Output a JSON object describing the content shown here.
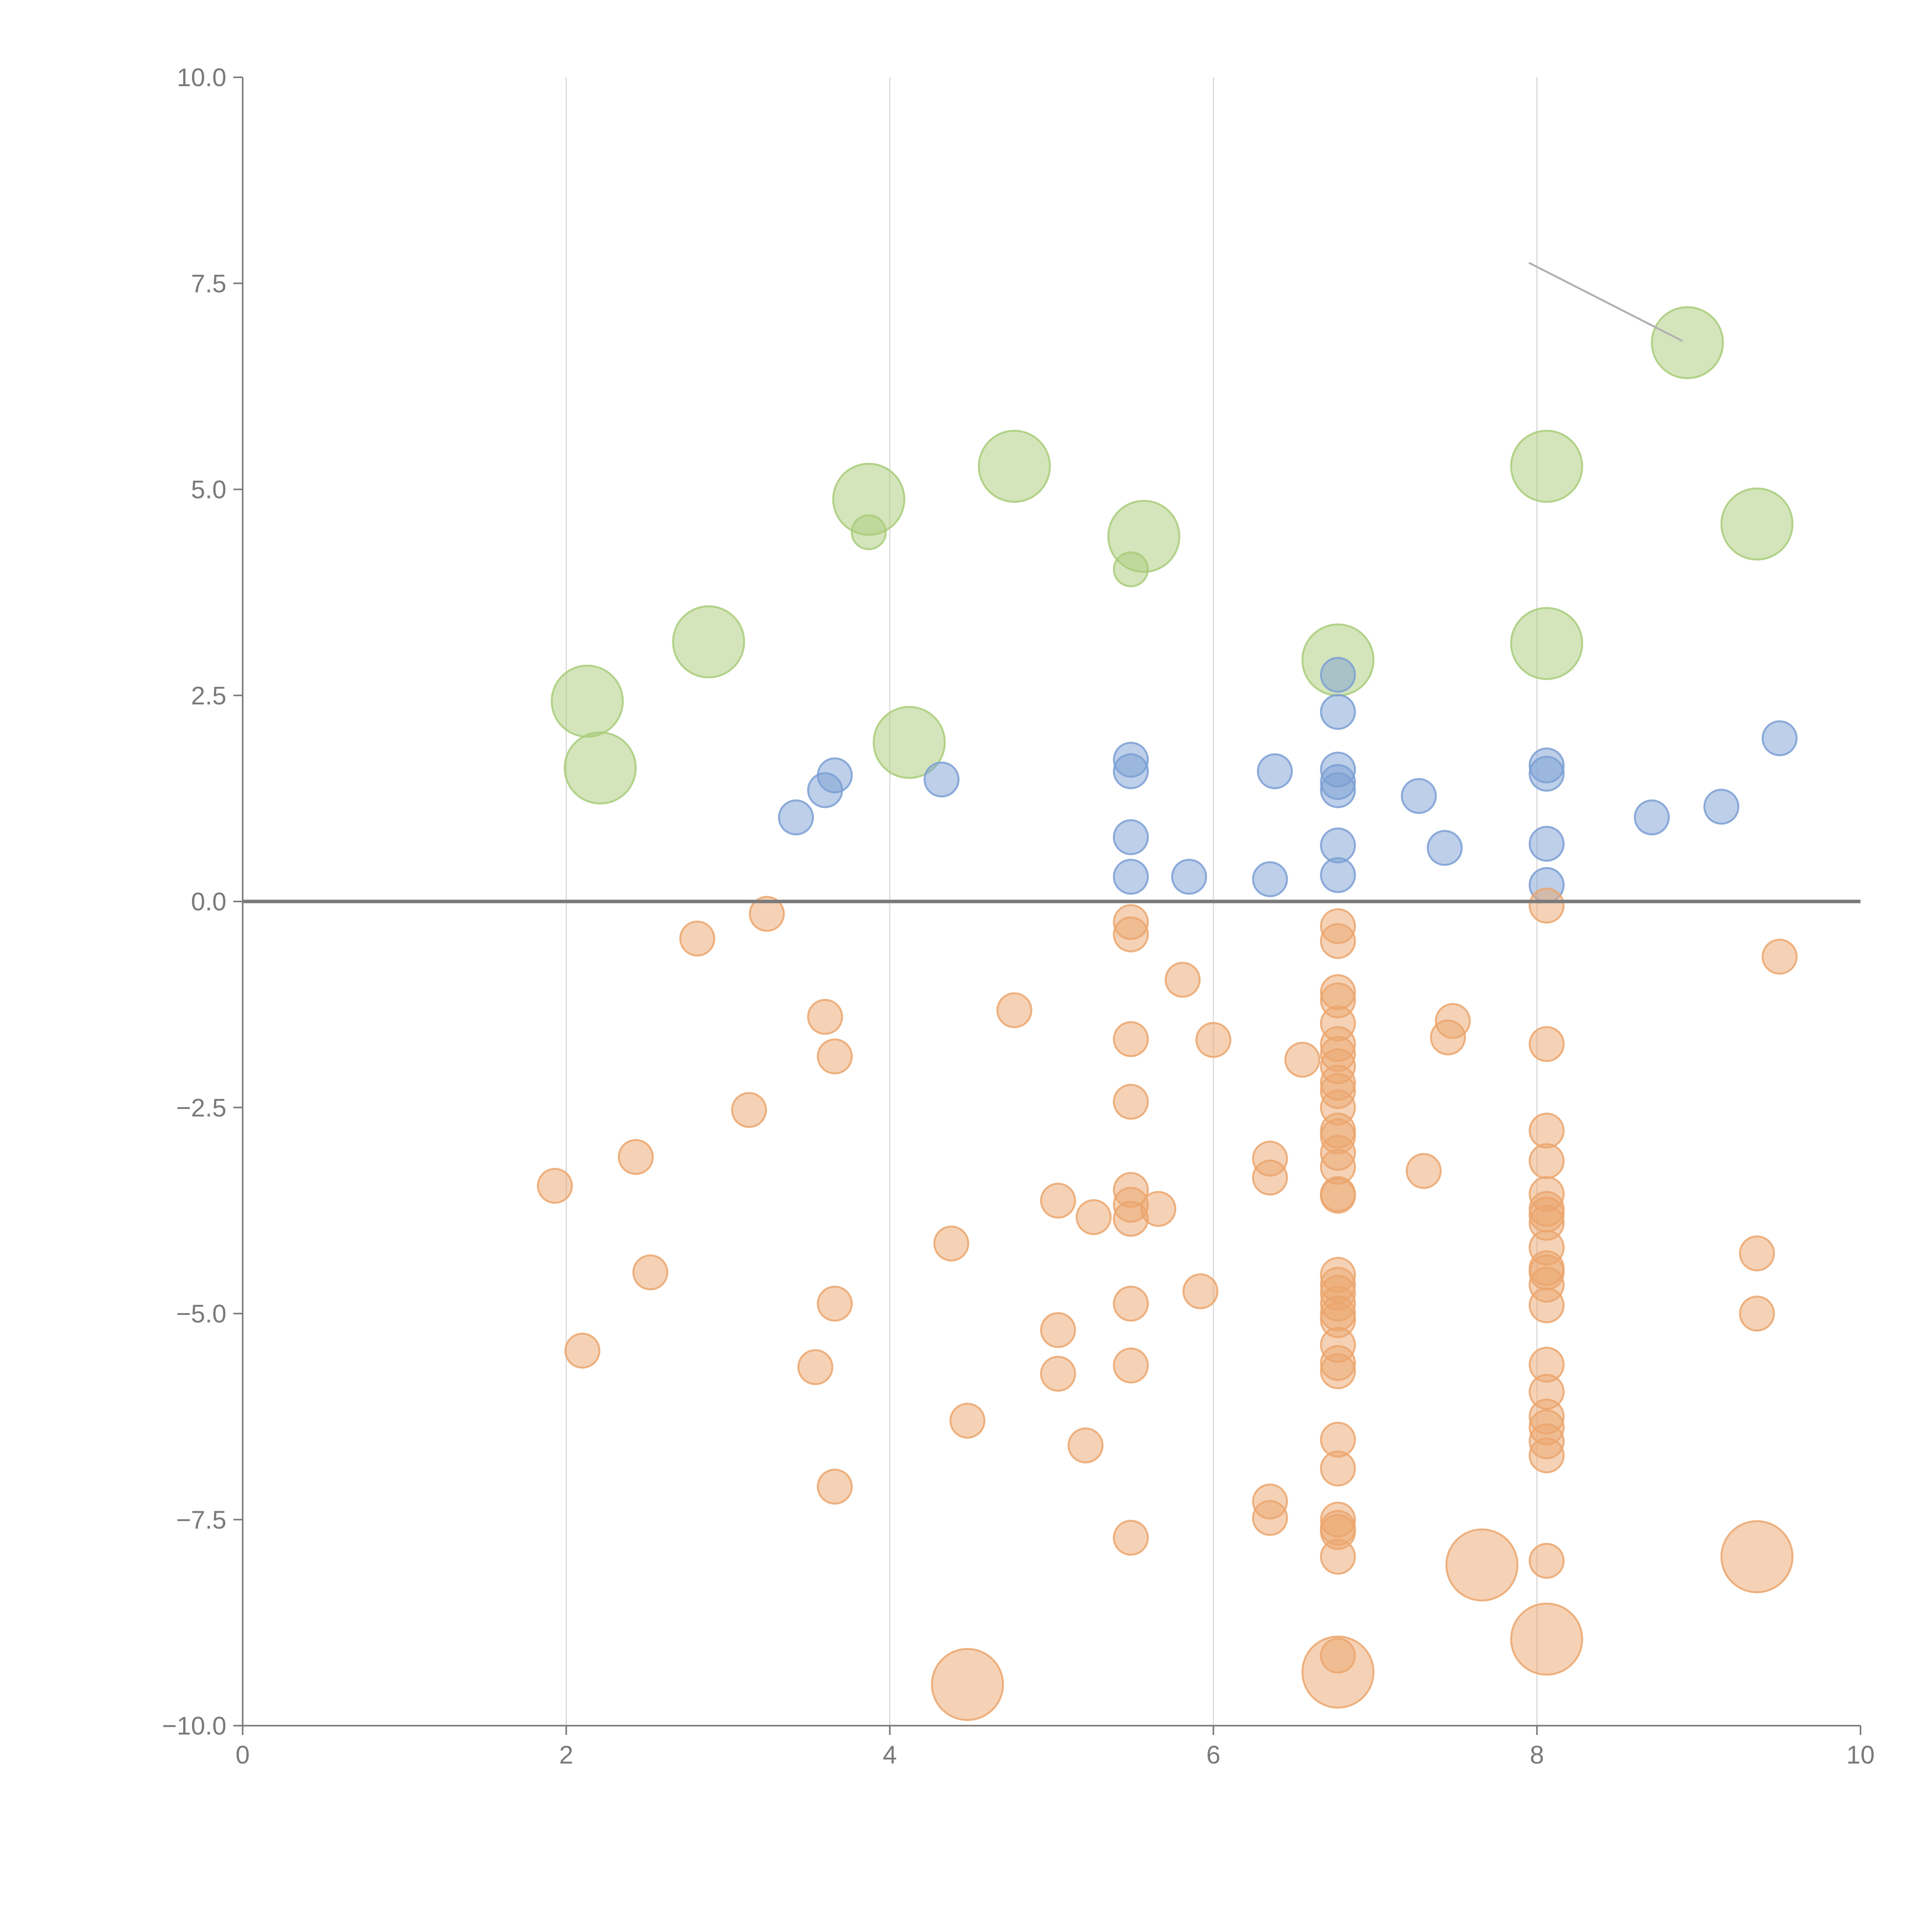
{
  "chart_data": {
    "type": "scatter",
    "title": "",
    "xlabel": "",
    "ylabel": "",
    "xlim": [
      0,
      10
    ],
    "ylim": [
      -10,
      10
    ],
    "x_ticks": [
      "0",
      "2",
      "4",
      "6",
      "8",
      "10"
    ],
    "y_ticks": [
      "10.0",
      "7.5",
      "5.0",
      "2.5",
      "0.0",
      "−2.5",
      "−5.0",
      "−7.5",
      "−10.0"
    ],
    "x_tick_values": [
      0,
      2,
      4,
      6,
      8,
      10
    ],
    "y_tick_values": [
      10,
      7.5,
      5,
      2.5,
      0,
      -2.5,
      -5,
      -7.5,
      -10
    ],
    "vertical_grid_at": [
      2,
      4,
      6,
      8
    ],
    "reference_line_y": 0,
    "annotation_line": {
      "from": [
        7.95,
        7.75
      ],
      "to": [
        8.9,
        6.8
      ]
    },
    "series": [
      {
        "name": "green",
        "color": "#a9cc7a",
        "points": [
          [
            2.13,
            2.43,
            2
          ],
          [
            2.21,
            1.62,
            2
          ],
          [
            2.88,
            3.15,
            2
          ],
          [
            3.87,
            4.88,
            2
          ],
          [
            3.87,
            4.48,
            1
          ],
          [
            4.12,
            1.93,
            2
          ],
          [
            4.77,
            5.28,
            2
          ],
          [
            5.49,
            4.03,
            1
          ],
          [
            5.57,
            4.43,
            2
          ],
          [
            6.77,
            2.93,
            2
          ],
          [
            8.06,
            5.28,
            2
          ],
          [
            8.06,
            3.13,
            2
          ],
          [
            8.93,
            6.78,
            2
          ],
          [
            9.36,
            4.58,
            2
          ]
        ]
      },
      {
        "name": "blue",
        "color": "#7b9fd4",
        "points": [
          [
            3.42,
            1.02,
            1
          ],
          [
            3.6,
            1.35,
            1
          ],
          [
            3.66,
            1.53,
            1
          ],
          [
            4.32,
            1.48,
            1
          ],
          [
            5.49,
            1.72,
            1
          ],
          [
            5.49,
            1.58,
            1
          ],
          [
            5.49,
            0.78,
            1
          ],
          [
            5.49,
            0.3,
            1
          ],
          [
            5.85,
            0.3,
            1
          ],
          [
            6.35,
            0.27,
            1
          ],
          [
            6.38,
            1.58,
            1
          ],
          [
            6.77,
            2.75,
            1
          ],
          [
            6.77,
            2.3,
            1
          ],
          [
            6.77,
            1.6,
            1
          ],
          [
            6.77,
            1.45,
            1
          ],
          [
            6.77,
            1.35,
            1
          ],
          [
            6.77,
            0.68,
            1
          ],
          [
            6.77,
            0.32,
            1
          ],
          [
            7.27,
            1.28,
            1
          ],
          [
            7.43,
            0.65,
            1
          ],
          [
            8.06,
            1.65,
            1
          ],
          [
            8.06,
            1.55,
            1
          ],
          [
            8.06,
            0.7,
            1
          ],
          [
            8.06,
            0.2,
            1
          ],
          [
            8.71,
            1.02,
            1
          ],
          [
            9.14,
            1.15,
            1
          ],
          [
            9.5,
            1.98,
            1
          ]
        ]
      },
      {
        "name": "orange",
        "color": "#eba66d",
        "points": [
          [
            1.93,
            -3.45,
            1
          ],
          [
            2.1,
            -5.45,
            1
          ],
          [
            2.43,
            -3.1,
            1
          ],
          [
            2.52,
            -4.5,
            1
          ],
          [
            2.81,
            -0.45,
            1
          ],
          [
            3.13,
            -2.53,
            1
          ],
          [
            3.24,
            -0.15,
            1
          ],
          [
            3.54,
            -5.65,
            1
          ],
          [
            3.6,
            -1.4,
            1
          ],
          [
            3.66,
            -1.88,
            1
          ],
          [
            3.66,
            -4.88,
            1
          ],
          [
            3.66,
            -7.1,
            1
          ],
          [
            4.38,
            -4.15,
            1
          ],
          [
            4.48,
            -6.3,
            1
          ],
          [
            4.48,
            -9.5,
            2
          ],
          [
            4.77,
            -1.32,
            1
          ],
          [
            5.04,
            -3.63,
            1
          ],
          [
            5.04,
            -5.2,
            1
          ],
          [
            5.04,
            -5.73,
            1
          ],
          [
            5.21,
            -6.6,
            1
          ],
          [
            5.26,
            -3.83,
            1
          ],
          [
            5.49,
            -0.25,
            1
          ],
          [
            5.49,
            -0.4,
            1
          ],
          [
            5.49,
            -1.67,
            1
          ],
          [
            5.49,
            -2.43,
            1
          ],
          [
            5.49,
            -3.5,
            1
          ],
          [
            5.49,
            -3.68,
            1
          ],
          [
            5.49,
            -3.85,
            1
          ],
          [
            5.49,
            -4.88,
            1
          ],
          [
            5.49,
            -5.63,
            1
          ],
          [
            5.49,
            -7.72,
            1
          ],
          [
            5.66,
            -3.73,
            1
          ],
          [
            5.81,
            -0.95,
            1
          ],
          [
            5.92,
            -4.73,
            1
          ],
          [
            6.0,
            -1.68,
            1
          ],
          [
            6.35,
            -3.12,
            1
          ],
          [
            6.35,
            -3.35,
            1
          ],
          [
            6.35,
            -7.28,
            1
          ],
          [
            6.35,
            -7.48,
            1
          ],
          [
            6.55,
            -1.92,
            1
          ],
          [
            6.77,
            -0.3,
            1
          ],
          [
            6.77,
            -0.48,
            1
          ],
          [
            6.77,
            -1.1,
            1
          ],
          [
            6.77,
            -1.2,
            1
          ],
          [
            6.77,
            -1.48,
            1
          ],
          [
            6.77,
            -1.73,
            1
          ],
          [
            6.77,
            -1.85,
            1
          ],
          [
            6.77,
            -2.0,
            1
          ],
          [
            6.77,
            -2.2,
            1
          ],
          [
            6.77,
            -2.3,
            1
          ],
          [
            6.77,
            -2.5,
            1
          ],
          [
            6.77,
            -2.78,
            1
          ],
          [
            6.77,
            -2.85,
            1
          ],
          [
            6.77,
            -3.05,
            1
          ],
          [
            6.77,
            -3.22,
            1
          ],
          [
            6.77,
            -3.55,
            1
          ],
          [
            6.77,
            -3.57,
            1
          ],
          [
            6.77,
            -4.53,
            1
          ],
          [
            6.77,
            -4.65,
            1
          ],
          [
            6.77,
            -4.75,
            1
          ],
          [
            6.77,
            -4.88,
            1
          ],
          [
            6.77,
            -5.0,
            1
          ],
          [
            6.77,
            -5.08,
            1
          ],
          [
            6.77,
            -5.38,
            1
          ],
          [
            6.77,
            -5.6,
            1
          ],
          [
            6.77,
            -5.7,
            1
          ],
          [
            6.77,
            -6.53,
            1
          ],
          [
            6.77,
            -6.88,
            1
          ],
          [
            6.77,
            -7.5,
            1
          ],
          [
            6.77,
            -7.6,
            1
          ],
          [
            6.77,
            -7.65,
            1
          ],
          [
            6.77,
            -7.95,
            1
          ],
          [
            6.77,
            -9.15,
            1
          ],
          [
            6.77,
            -9.35,
            2
          ],
          [
            7.3,
            -3.27,
            1
          ],
          [
            7.45,
            -1.65,
            1
          ],
          [
            7.48,
            -1.45,
            1
          ],
          [
            7.66,
            -8.05,
            2
          ],
          [
            8.06,
            -0.05,
            1
          ],
          [
            8.06,
            -1.73,
            1
          ],
          [
            8.06,
            -2.78,
            1
          ],
          [
            8.06,
            -3.15,
            1
          ],
          [
            8.06,
            -3.55,
            1
          ],
          [
            8.06,
            -3.73,
            1
          ],
          [
            8.06,
            -3.8,
            1
          ],
          [
            8.06,
            -3.9,
            1
          ],
          [
            8.06,
            -4.2,
            1
          ],
          [
            8.06,
            -4.45,
            1
          ],
          [
            8.06,
            -4.5,
            1
          ],
          [
            8.06,
            -4.65,
            1
          ],
          [
            8.06,
            -4.9,
            1
          ],
          [
            8.06,
            -5.62,
            1
          ],
          [
            8.06,
            -5.95,
            1
          ],
          [
            8.06,
            -6.25,
            1
          ],
          [
            8.06,
            -6.38,
            1
          ],
          [
            8.06,
            -6.55,
            1
          ],
          [
            8.06,
            -6.72,
            1
          ],
          [
            8.06,
            -8.0,
            1
          ],
          [
            8.06,
            -8.95,
            2
          ],
          [
            9.36,
            -4.27,
            1
          ],
          [
            9.36,
            -5.0,
            1
          ],
          [
            9.36,
            -7.95,
            2
          ],
          [
            9.5,
            -0.67,
            1
          ]
        ]
      }
    ]
  }
}
